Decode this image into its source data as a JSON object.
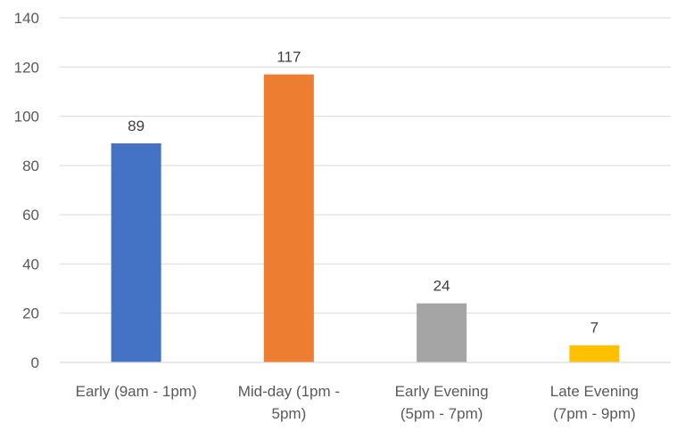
{
  "chart_data": {
    "type": "bar",
    "categories": [
      [
        "Early (9am - 1pm)"
      ],
      [
        "Mid-day (1pm -",
        "5pm)"
      ],
      [
        "Early Evening",
        "(5pm - 7pm)"
      ],
      [
        "Late Evening",
        "(7pm - 9pm)"
      ]
    ],
    "values": [
      89,
      117,
      24,
      7
    ],
    "colors": [
      "#4472c4",
      "#ed7d31",
      "#a5a5a5",
      "#ffc000"
    ],
    "ylim": [
      0,
      140
    ],
    "yticks": [
      0,
      20,
      40,
      60,
      80,
      100,
      120,
      140
    ],
    "grid": true,
    "data_labels": true,
    "title": "",
    "xlabel": "",
    "ylabel": ""
  }
}
